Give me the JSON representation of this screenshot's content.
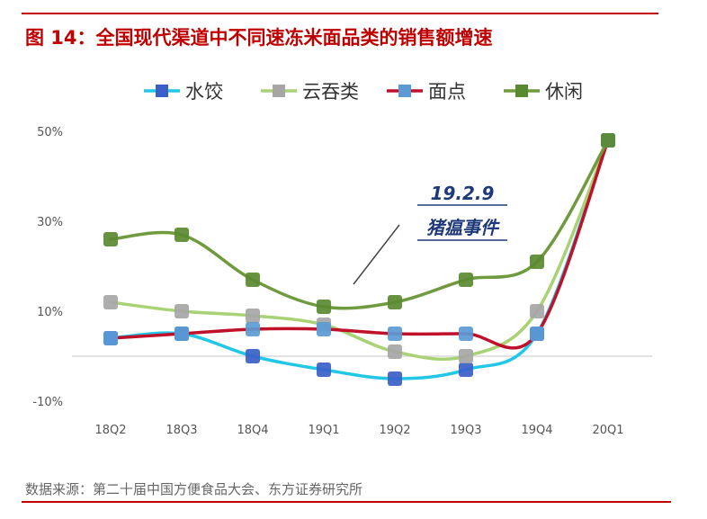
{
  "title": "图 14：全国现代渠道中不同速冻米面品类的销售额增速",
  "source": "数据来源：第二十届中国方便食品大会、东方证券研究所",
  "colors": {
    "accent": "#c00000"
  },
  "chart_data": {
    "type": "line",
    "title": "图 14：全国现代渠道中不同速冻米面品类的销售额增速",
    "categories": [
      "18Q2",
      "18Q3",
      "18Q4",
      "19Q1",
      "19Q2",
      "19Q3",
      "19Q4",
      "20Q1"
    ],
    "ylim": [
      -10,
      50
    ],
    "yticks": [
      "50%",
      "30%",
      "10%",
      "-10%"
    ],
    "ytick_values": [
      50,
      30,
      10,
      -10
    ],
    "legend_position": "top",
    "grid": false,
    "series": [
      {
        "name": "水饺",
        "line_color": "#22c7e8",
        "marker_color": "#3a5fc8",
        "values": [
          4,
          5,
          0,
          -3,
          -5,
          -3,
          5,
          48
        ]
      },
      {
        "name": "云吞类",
        "line_color": "#a9d274",
        "marker_color": "#a6a6a6",
        "values": [
          12,
          10,
          9,
          7,
          1,
          0,
          10,
          48
        ]
      },
      {
        "name": "面点",
        "line_color": "#c0112b",
        "marker_color": "#5b9bd5",
        "values": [
          4,
          5,
          6,
          6,
          5,
          5,
          5,
          48
        ]
      },
      {
        "name": "休闲",
        "line_color": "#6f9a3e",
        "marker_color": "#5a8a30",
        "values": [
          26,
          27,
          17,
          11,
          12,
          17,
          21,
          48
        ]
      }
    ],
    "annotation": {
      "line1": "19.2.9",
      "line2": "猪瘟事件"
    }
  }
}
